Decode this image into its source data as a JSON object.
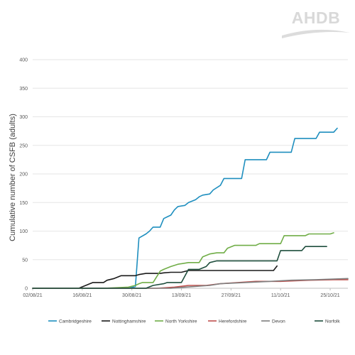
{
  "logo": {
    "text": "AHDB"
  },
  "chart_data": {
    "type": "line",
    "title": "",
    "xlabel": "",
    "ylabel": "Cumulative number of CSFB (adults)",
    "ylim": [
      0,
      400
    ],
    "yticks": [
      0,
      50,
      100,
      150,
      200,
      250,
      300,
      350,
      400
    ],
    "xlim": [
      "02/08/21",
      "30/10/21"
    ],
    "xticks": [
      "02/08/21",
      "16/08/21",
      "30/08/21",
      "13/09/21",
      "27/09/21",
      "11/10/21",
      "25/10/21"
    ],
    "grid": "horizontal",
    "legend_position": "bottom",
    "series": [
      {
        "name": "Cambridgeshire",
        "color": "#1f8fbf",
        "step": true,
        "points": [
          [
            "02/08/21",
            0
          ],
          [
            "29/08/21",
            0
          ],
          [
            "31/08/21",
            3
          ],
          [
            "01/09/21",
            88
          ],
          [
            "03/09/21",
            95
          ],
          [
            "04/09/21",
            100
          ],
          [
            "05/09/21",
            107
          ],
          [
            "07/09/21",
            107
          ],
          [
            "08/09/21",
            122
          ],
          [
            "09/09/21",
            125
          ],
          [
            "10/09/21",
            128
          ],
          [
            "11/09/21",
            137
          ],
          [
            "12/09/21",
            143
          ],
          [
            "14/09/21",
            145
          ],
          [
            "15/09/21",
            150
          ],
          [
            "17/09/21",
            155
          ],
          [
            "18/09/21",
            160
          ],
          [
            "19/09/21",
            163
          ],
          [
            "21/09/21",
            165
          ],
          [
            "22/09/21",
            172
          ],
          [
            "24/09/21",
            180
          ],
          [
            "25/09/21",
            192
          ],
          [
            "30/09/21",
            192
          ],
          [
            "01/10/21",
            225
          ],
          [
            "07/10/21",
            225
          ],
          [
            "08/10/21",
            238
          ],
          [
            "14/10/21",
            238
          ],
          [
            "15/10/21",
            262
          ],
          [
            "21/10/21",
            262
          ],
          [
            "22/10/21",
            273
          ],
          [
            "26/10/21",
            273
          ],
          [
            "27/10/21",
            280
          ]
        ]
      },
      {
        "name": "Nottinghamshire",
        "color": "#1a1a1a",
        "step": true,
        "points": [
          [
            "02/08/21",
            0
          ],
          [
            "15/08/21",
            0
          ],
          [
            "17/08/21",
            5
          ],
          [
            "19/08/21",
            10
          ],
          [
            "22/08/21",
            10
          ],
          [
            "23/08/21",
            14
          ],
          [
            "25/08/21",
            17
          ],
          [
            "27/08/21",
            22
          ],
          [
            "31/08/21",
            22
          ],
          [
            "01/09/21",
            24
          ],
          [
            "03/09/21",
            26
          ],
          [
            "07/09/21",
            26
          ],
          [
            "08/09/21",
            27
          ],
          [
            "10/09/21",
            28
          ],
          [
            "13/09/21",
            28
          ],
          [
            "15/09/21",
            31
          ],
          [
            "18/09/21",
            31
          ],
          [
            "29/09/21",
            31
          ],
          [
            "09/10/21",
            31
          ],
          [
            "10/10/21",
            39
          ]
        ]
      },
      {
        "name": "North Yorkshire",
        "color": "#70ad47",
        "step": true,
        "points": [
          [
            "02/08/21",
            0
          ],
          [
            "22/08/21",
            0
          ],
          [
            "29/08/21",
            2
          ],
          [
            "31/08/21",
            5
          ],
          [
            "01/09/21",
            8
          ],
          [
            "02/09/21",
            10
          ],
          [
            "05/09/21",
            10
          ],
          [
            "07/09/21",
            30
          ],
          [
            "08/09/21",
            33
          ],
          [
            "10/09/21",
            38
          ],
          [
            "12/09/21",
            42
          ],
          [
            "15/09/21",
            45
          ],
          [
            "18/09/21",
            45
          ],
          [
            "19/09/21",
            55
          ],
          [
            "21/09/21",
            60
          ],
          [
            "23/09/21",
            62
          ],
          [
            "25/09/21",
            62
          ],
          [
            "26/09/21",
            70
          ],
          [
            "28/09/21",
            75
          ],
          [
            "04/10/21",
            75
          ],
          [
            "05/10/21",
            78
          ],
          [
            "11/10/21",
            78
          ],
          [
            "12/10/21",
            92
          ],
          [
            "18/10/21",
            92
          ],
          [
            "19/10/21",
            95
          ],
          [
            "25/10/21",
            95
          ],
          [
            "26/10/21",
            97
          ]
        ]
      },
      {
        "name": "Herefordshire",
        "color": "#c0504d",
        "step": true,
        "points": [
          [
            "02/08/21",
            0
          ],
          [
            "06/09/21",
            0
          ],
          [
            "11/09/21",
            2
          ],
          [
            "15/09/21",
            5
          ],
          [
            "20/09/21",
            5
          ],
          [
            "24/09/21",
            8
          ],
          [
            "29/09/21",
            10
          ],
          [
            "04/10/21",
            12
          ],
          [
            "11/10/21",
            12
          ],
          [
            "19/10/21",
            14
          ],
          [
            "26/10/21",
            15
          ],
          [
            "30/10/21",
            15
          ]
        ]
      },
      {
        "name": "Devon",
        "color": "#7f7f7f",
        "step": true,
        "points": [
          [
            "02/08/21",
            0
          ],
          [
            "10/09/21",
            0
          ],
          [
            "14/09/21",
            2
          ],
          [
            "21/09/21",
            5
          ],
          [
            "24/09/21",
            8
          ],
          [
            "01/10/21",
            10
          ],
          [
            "08/10/21",
            12
          ],
          [
            "14/10/21",
            14
          ],
          [
            "21/10/21",
            15
          ],
          [
            "30/10/21",
            17
          ]
        ]
      },
      {
        "name": "Norfolk",
        "color": "#1f4e3d",
        "step": true,
        "points": [
          [
            "02/08/21",
            0
          ],
          [
            "03/09/21",
            0
          ],
          [
            "05/09/21",
            5
          ],
          [
            "08/09/21",
            8
          ],
          [
            "09/09/21",
            10
          ],
          [
            "13/09/21",
            10
          ],
          [
            "15/09/21",
            33
          ],
          [
            "18/09/21",
            33
          ],
          [
            "20/09/21",
            38
          ],
          [
            "21/09/21",
            45
          ],
          [
            "23/09/21",
            48
          ],
          [
            "10/10/21",
            48
          ],
          [
            "11/10/21",
            66
          ],
          [
            "17/10/21",
            66
          ],
          [
            "18/10/21",
            73
          ],
          [
            "24/10/21",
            73
          ]
        ]
      }
    ]
  }
}
